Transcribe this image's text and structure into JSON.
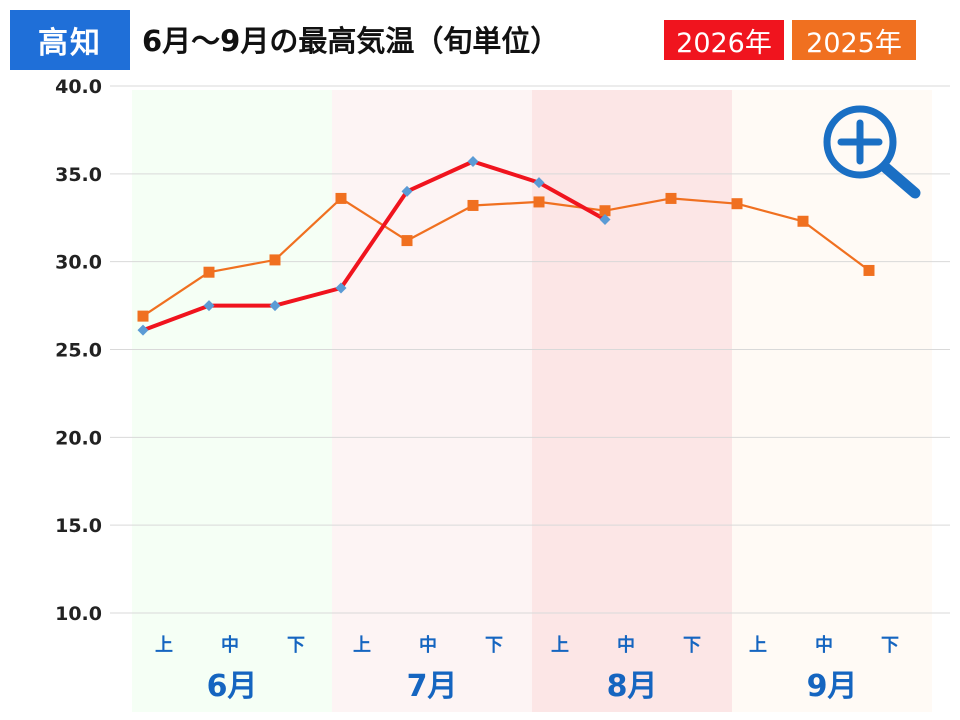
{
  "region": "高知",
  "title": "6月～9月の最高気温（旬単位）",
  "colors": {
    "region_badge": "#1f6fd8",
    "series_2026": "#f0141e",
    "series_2025": "#f07020",
    "marker_2026": "#5b9bd5",
    "axis_text": "#222222",
    "category_text": "#1565c0",
    "zoom_icon": "#1a6fc4"
  },
  "icons": {
    "zoom": "zoom-in-icon"
  },
  "chart_data": {
    "type": "line",
    "categories": [
      "上",
      "中",
      "下",
      "上",
      "中",
      "下",
      "上",
      "中",
      "下",
      "上",
      "中",
      "下"
    ],
    "months": [
      {
        "label": "6月",
        "color": "#f5fff5"
      },
      {
        "label": "7月",
        "color": "#fdf4f4"
      },
      {
        "label": "8月",
        "color": "#fce6e6"
      },
      {
        "label": "9月",
        "color": "#fffaf5"
      }
    ],
    "ylim": [
      10,
      40
    ],
    "yticks": [
      "10.0",
      "15.0",
      "20.0",
      "25.0",
      "30.0",
      "35.0",
      "40.0"
    ],
    "grid": true,
    "series": [
      {
        "name": "2026年",
        "color": "#f0141e",
        "marker": "diamond",
        "values": [
          26.1,
          27.5,
          27.5,
          28.5,
          34.0,
          35.7,
          34.5,
          32.4,
          null,
          null,
          null,
          null
        ]
      },
      {
        "name": "2025年",
        "color": "#f07020",
        "marker": "square",
        "values": [
          26.9,
          29.4,
          30.1,
          33.6,
          31.2,
          33.2,
          33.4,
          32.9,
          33.6,
          33.3,
          32.3,
          29.5
        ]
      }
    ],
    "title": "6月～9月の最高気温（旬単位）",
    "legend_position": "top-right"
  }
}
